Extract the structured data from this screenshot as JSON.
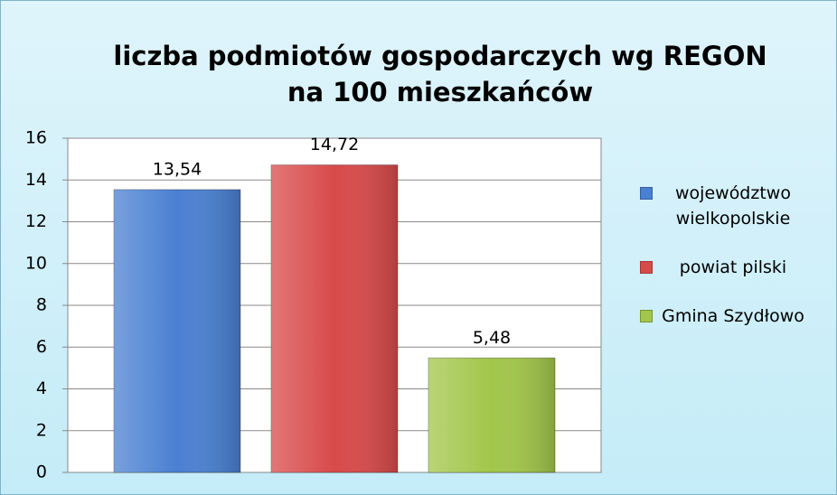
{
  "chart_data": {
    "type": "bar",
    "title": [
      "liczba podmiotów gospodarczych wg REGON",
      "na 100 mieszkańców"
    ],
    "series": [
      {
        "name": "województwo wielkopolskie",
        "color": "#4a80d2",
        "values": [
          13.54
        ],
        "value_labels": [
          "13,54"
        ]
      },
      {
        "name": "powiat pilski",
        "color": "#d84a4a",
        "values": [
          14.72
        ],
        "value_labels": [
          "14,72"
        ]
      },
      {
        "name": "Gmina Szydłowo",
        "color": "#a2c64a",
        "values": [
          5.48
        ],
        "value_labels": [
          "5,48"
        ]
      }
    ],
    "ylim": [
      0,
      16
    ],
    "yticks": [
      0,
      2,
      4,
      6,
      8,
      10,
      12,
      14,
      16
    ],
    "grid": true,
    "legend": "right"
  }
}
